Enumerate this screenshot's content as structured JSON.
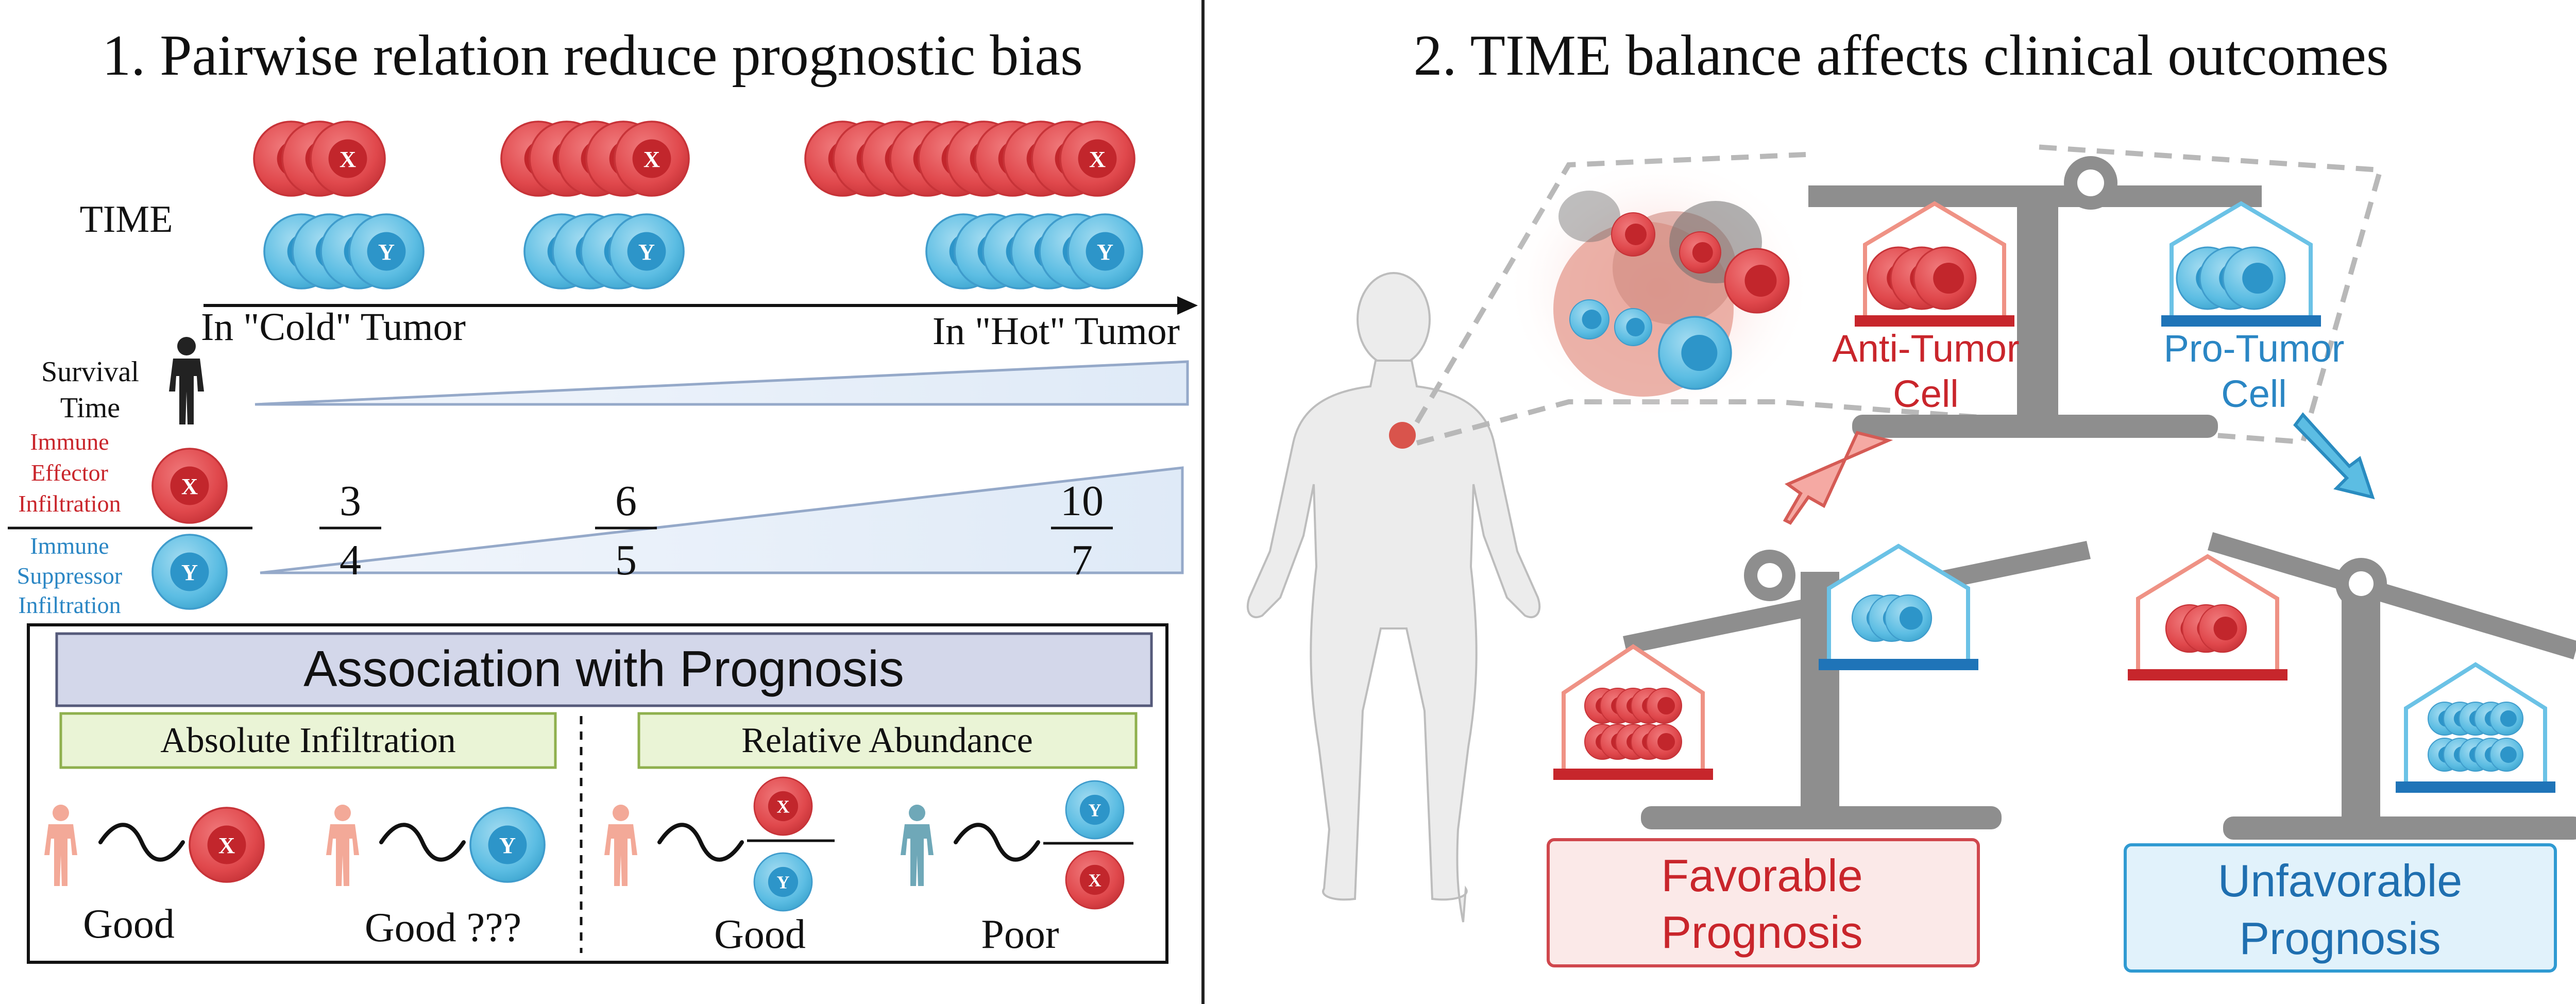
{
  "left_panel": {
    "title": "1.  Pairwise relation reduce prognostic bias",
    "time_label": "TIME",
    "cold_label": "In \"Cold\" Tumor",
    "hot_label": "In \"Hot\" Tumor",
    "survival_label_1": "Survival",
    "survival_label_2": "Time",
    "effector_label": [
      "Immune",
      "Effector",
      "Infiltration"
    ],
    "suppressor_label": [
      "Immune",
      "Suppressor",
      "Infiltration"
    ],
    "cell_x": "X",
    "cell_y": "Y",
    "ratios": [
      {
        "num": "3",
        "den": "4"
      },
      {
        "num": "6",
        "den": "5"
      },
      {
        "num": "10",
        "den": "7"
      }
    ],
    "association_title": "Association with Prognosis",
    "absolute_title": "Absolute Infiltration",
    "relative_title": "Relative Abundance",
    "outcomes": [
      "Good",
      "Good ???",
      "Good",
      "Poor"
    ]
  },
  "right_panel": {
    "title": "2. TIME balance affects clinical outcomes",
    "anti_tumor": [
      "Anti-Tumor",
      "Cell"
    ],
    "pro_tumor": [
      "Pro-Tumor",
      "Cell"
    ],
    "favorable": [
      "Favorable",
      "Prognosis"
    ],
    "unfavorable": [
      "Unfavorable",
      "Prognosis"
    ]
  },
  "colors": {
    "red": "#e0484c",
    "red_dark": "#b5252b",
    "blue": "#5cbde3",
    "blue_dark": "#2a8cc0",
    "gray": "#8e8e8e",
    "box_green": "#eaf4d6",
    "box_blue": "#d3d7ea"
  }
}
